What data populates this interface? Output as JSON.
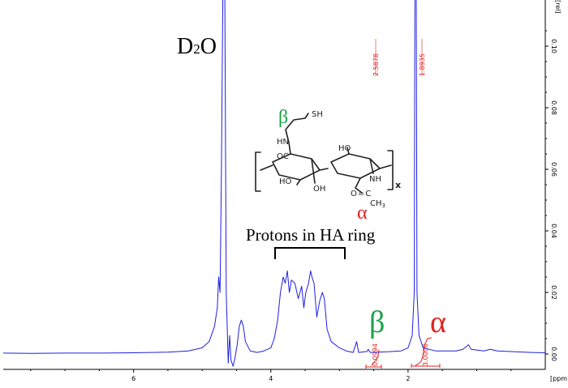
{
  "chart_data": {
    "type": "line",
    "title": "",
    "xlabel": "[ppm]",
    "ylabel": "[rel]",
    "x_axis": {
      "reversed": true,
      "range": [
        7.9,
        0.0
      ],
      "ticks": [
        "6",
        "4",
        "2"
      ]
    },
    "y_axis": {
      "range": [
        -0.005,
        0.115
      ],
      "ticks": [
        "0.00",
        "0.02",
        "0.04",
        "0.06",
        "0.08",
        "0.10"
      ]
    },
    "grid": false,
    "line_color": "#1f1fe0",
    "series": [
      {
        "values_note": "",
        "points": [
          [
            7.9,
            0.0003
          ],
          [
            7.5,
            0.0002
          ],
          [
            7.0,
            0.0003
          ],
          [
            6.5,
            0.0003
          ],
          [
            6.0,
            0.0004
          ],
          [
            5.5,
            0.0006
          ],
          [
            5.2,
            0.001
          ],
          [
            5.0,
            0.002
          ],
          [
            4.9,
            0.004
          ],
          [
            4.82,
            0.009
          ],
          [
            4.78,
            0.015
          ],
          [
            4.76,
            0.025
          ],
          [
            4.74,
            0.02
          ],
          [
            4.72,
            0.06
          ],
          [
            4.7,
            0.12
          ],
          [
            4.67,
            0.12
          ],
          [
            4.65,
            0.02
          ],
          [
            4.62,
            -0.003
          ],
          [
            4.6,
            0.006
          ],
          [
            4.58,
            -0.002
          ],
          [
            4.55,
            -0.004
          ],
          [
            4.52,
            -0.001
          ],
          [
            4.49,
            0.003
          ],
          [
            4.46,
            0.009
          ],
          [
            4.43,
            0.011
          ],
          [
            4.4,
            0.009
          ],
          [
            4.37,
            0.004
          ],
          [
            4.3,
            0.001
          ],
          [
            4.2,
            0.0005
          ],
          [
            4.1,
            0.001
          ],
          [
            4.0,
            0.002
          ],
          [
            3.95,
            0.005
          ],
          [
            3.9,
            0.011
          ],
          [
            3.86,
            0.02
          ],
          [
            3.82,
            0.025
          ],
          [
            3.79,
            0.023
          ],
          [
            3.76,
            0.027
          ],
          [
            3.73,
            0.02
          ],
          [
            3.7,
            0.024
          ],
          [
            3.65,
            0.023
          ],
          [
            3.6,
            0.018
          ],
          [
            3.55,
            0.022
          ],
          [
            3.52,
            0.015
          ],
          [
            3.49,
            0.02
          ],
          [
            3.45,
            0.023
          ],
          [
            3.42,
            0.027
          ],
          [
            3.4,
            0.025
          ],
          [
            3.37,
            0.023
          ],
          [
            3.33,
            0.012
          ],
          [
            3.29,
            0.017
          ],
          [
            3.25,
            0.02
          ],
          [
            3.22,
            0.018
          ],
          [
            3.18,
            0.008
          ],
          [
            3.12,
            0.004
          ],
          [
            3.0,
            0.002
          ],
          [
            2.9,
            0.001
          ],
          [
            2.8,
            0.0005
          ],
          [
            2.75,
            0.004
          ],
          [
            2.72,
            0.0005
          ],
          [
            2.6,
            0.0008
          ],
          [
            2.58,
            0.0015
          ],
          [
            2.55,
            0.0005
          ],
          [
            2.3,
            0.0007
          ],
          [
            2.1,
            0.001
          ],
          [
            2.0,
            0.002
          ],
          [
            1.94,
            0.006
          ],
          [
            1.91,
            0.02
          ],
          [
            1.9,
            0.12
          ],
          [
            1.88,
            0.12
          ],
          [
            1.87,
            0.02
          ],
          [
            1.84,
            0.006
          ],
          [
            1.78,
            0.002
          ],
          [
            1.6,
            0.001
          ],
          [
            1.3,
            0.001
          ],
          [
            1.2,
            0.0015
          ],
          [
            1.12,
            0.003
          ],
          [
            1.08,
            0.0015
          ],
          [
            0.9,
            0.001
          ],
          [
            0.8,
            0.0015
          ],
          [
            0.7,
            0.001
          ],
          [
            0.5,
            0.0008
          ],
          [
            0.2,
            0.0005
          ],
          [
            0.0,
            0.0004
          ]
        ]
      }
    ],
    "annotations": {
      "solvent": "D2O",
      "solvent_main": "D",
      "solvent_sub": "2",
      "solvent_tail": "O",
      "ring_label": "Protons in HA ring",
      "beta": "β",
      "alpha": "α",
      "peak_label_1": "2.5878",
      "peak_label_2": "1.8935",
      "integral_1": "0.0994",
      "integral_2": "3.0000",
      "structure": {
        "beta": "β",
        "alpha": "α",
        "sh": "SH",
        "hn": "HN",
        "oc": "OC",
        "ho_1": "HO",
        "ho_2": "HO",
        "oh": "OH",
        "nh": "NH",
        "c": "C",
        "o": "O",
        "ch3": "CH",
        "ch3_sub": "3",
        "x": "x"
      }
    }
  }
}
